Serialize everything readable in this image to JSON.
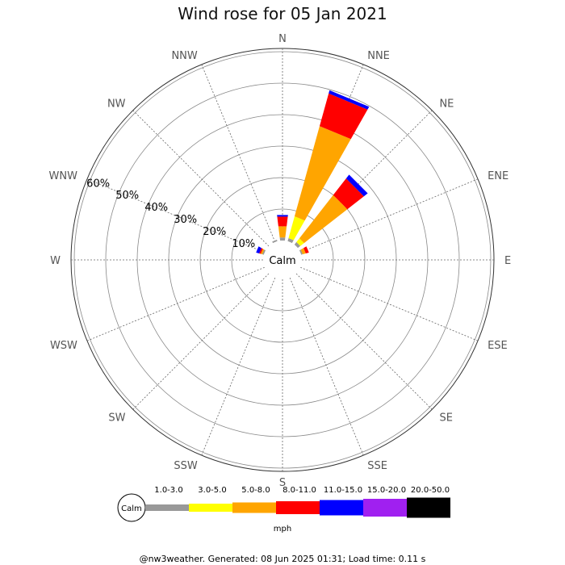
{
  "chart_data": {
    "type": "windrose",
    "title": "Wind rose for 05 Jan 2021",
    "directions": [
      "N",
      "NNE",
      "NE",
      "ENE",
      "E",
      "ESE",
      "SE",
      "SSE",
      "S",
      "SSW",
      "SW",
      "WSW",
      "W",
      "WNW",
      "NW",
      "NNW"
    ],
    "radial_ticks": [
      "10%",
      "20%",
      "30%",
      "40%",
      "50%",
      "60%"
    ],
    "radial_max": 65,
    "calm_label": "Calm",
    "speed_bins": [
      "1.0-3.0",
      "3.0-5.0",
      "5.0-8.0",
      "8.0-11.0",
      "11.0-15.0",
      "15.0-20.0",
      "20.0-50.0"
    ],
    "colors": [
      "#999999",
      "#ffff00",
      "#ffa500",
      "#ff0000",
      "#0000ff",
      "#a020f0",
      "#000000"
    ],
    "unit": "mph",
    "series": [
      {
        "direction": "N",
        "cumulative": [
          1.0,
          1.0,
          4.5,
          7.5,
          8.0
        ]
      },
      {
        "direction": "NNE",
        "cumulative": [
          1.0,
          8.0,
          37.0,
          47.5,
          48.5
        ]
      },
      {
        "direction": "NE",
        "cumulative": [
          1.0,
          2.5,
          19.5,
          26.0,
          27.5
        ]
      },
      {
        "direction": "ENE",
        "cumulative": [
          0.5,
          0.5,
          1.5,
          2.5
        ]
      },
      {
        "direction": "WNW",
        "cumulative": [
          0.5,
          0.5,
          1.0,
          1.5,
          2.5
        ]
      },
      {
        "direction": "NNW",
        "cumulative": [
          0.5
        ]
      }
    ]
  },
  "footer": "@nw3weather. Generated: 08 Jun 2025 01:31; Load time: 0.11 s"
}
